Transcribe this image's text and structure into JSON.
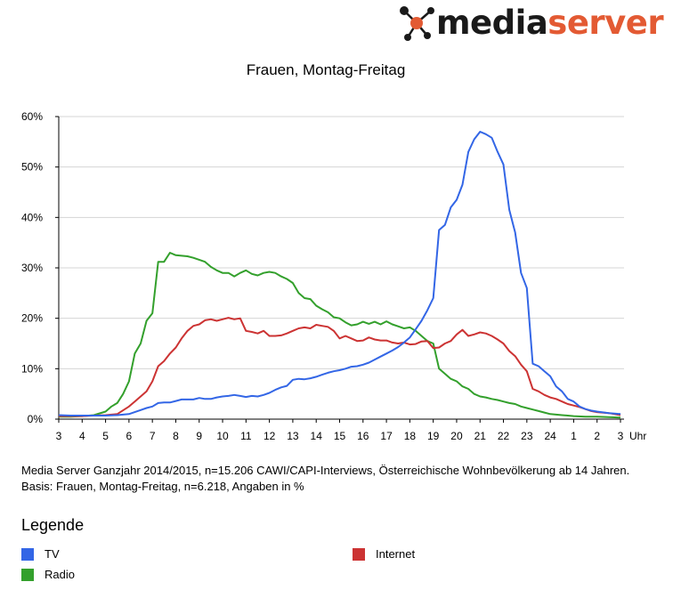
{
  "logo": {
    "part1": "media",
    "part2": "server"
  },
  "colors": {
    "tv": "#3366e6",
    "internet": "#cc3333",
    "radio": "#33a02c",
    "grid": "#d4d4d4",
    "logo_accent": "#e35a33"
  },
  "notes": {
    "line1": "Media Server Ganzjahr 2014/2015, n=15.206 CAWI/CAPI-Interviews, Österreichische Wohnbevölkerung ab 14 Jahren.",
    "line2": "Basis: Frauen, Montag-Freitag, n=6.218, Angaben in %"
  },
  "legend": {
    "title": "Legende"
  },
  "chart_data": {
    "type": "line",
    "title": "Frauen, Montag-Freitag",
    "xlabel": "Uhr",
    "ylabel": "",
    "ylim": [
      0,
      60
    ],
    "yticks": [
      "0%",
      "10%",
      "20%",
      "30%",
      "40%",
      "50%",
      "60%"
    ],
    "xlim": [
      3,
      27
    ],
    "x_tick_labels": [
      "3",
      "4",
      "5",
      "6",
      "7",
      "8",
      "9",
      "10",
      "11",
      "12",
      "13",
      "14",
      "15",
      "16",
      "17",
      "18",
      "19",
      "20",
      "21",
      "22",
      "23",
      "24",
      "1",
      "2",
      "3"
    ],
    "grid": true,
    "legend_position": "bottom",
    "series": [
      {
        "name": "TV",
        "color": "#3366e6",
        "x": [
          3,
          3.5,
          4,
          4.5,
          5,
          5.5,
          6,
          6.25,
          6.5,
          6.75,
          7,
          7.25,
          7.5,
          7.75,
          8,
          8.25,
          8.5,
          8.75,
          9,
          9.25,
          9.5,
          9.75,
          10,
          10.25,
          10.5,
          10.75,
          11,
          11.25,
          11.5,
          11.75,
          12,
          12.25,
          12.5,
          12.75,
          13,
          13.25,
          13.5,
          13.75,
          14,
          14.25,
          14.5,
          14.75,
          15,
          15.25,
          15.5,
          15.75,
          16,
          16.25,
          16.5,
          16.75,
          17,
          17.25,
          17.5,
          17.75,
          18,
          18.25,
          18.5,
          18.75,
          19,
          19.25,
          19.5,
          19.75,
          20,
          20.25,
          20.5,
          20.75,
          21,
          21.25,
          21.5,
          21.75,
          22,
          22.25,
          22.5,
          22.75,
          23,
          23.25,
          23.5,
          23.75,
          24,
          24.25,
          24.5,
          24.75,
          25,
          25.25,
          25.5,
          25.75,
          26,
          26.5,
          27
        ],
        "values": [
          0.8,
          0.7,
          0.7,
          0.7,
          0.7,
          0.8,
          1.0,
          1.4,
          1.8,
          2.2,
          2.5,
          3.2,
          3.3,
          3.3,
          3.6,
          3.9,
          3.9,
          3.9,
          4.2,
          4.0,
          4.0,
          4.3,
          4.5,
          4.6,
          4.8,
          4.6,
          4.4,
          4.6,
          4.5,
          4.8,
          5.2,
          5.8,
          6.3,
          6.6,
          7.8,
          8.0,
          7.9,
          8.1,
          8.4,
          8.8,
          9.2,
          9.5,
          9.7,
          10.0,
          10.4,
          10.5,
          10.8,
          11.2,
          11.8,
          12.4,
          13.0,
          13.6,
          14.3,
          15.2,
          16.2,
          17.8,
          19.5,
          21.6,
          24.0,
          37.5,
          38.5,
          42.0,
          43.5,
          46.5,
          53.0,
          55.5,
          57.0,
          56.5,
          55.8,
          53.0,
          50.5,
          41.5,
          37.0,
          29.0,
          26.0,
          11.0,
          10.5,
          9.5,
          8.5,
          6.5,
          5.5,
          4.0,
          3.5,
          2.5,
          2.0,
          1.7,
          1.5,
          1.2,
          1.0
        ]
      },
      {
        "name": "Internet",
        "color": "#cc3333",
        "x": [
          3,
          3.5,
          4,
          4.5,
          5,
          5.5,
          6,
          6.25,
          6.5,
          6.75,
          7,
          7.25,
          7.5,
          7.75,
          8,
          8.25,
          8.5,
          8.75,
          9,
          9.25,
          9.5,
          9.75,
          10,
          10.25,
          10.5,
          10.75,
          11,
          11.25,
          11.5,
          11.75,
          12,
          12.25,
          12.5,
          12.75,
          13,
          13.25,
          13.5,
          13.75,
          14,
          14.25,
          14.5,
          14.75,
          15,
          15.25,
          15.5,
          15.75,
          16,
          16.25,
          16.5,
          16.75,
          17,
          17.25,
          17.5,
          17.75,
          18,
          18.25,
          18.5,
          18.75,
          19,
          19.25,
          19.5,
          19.75,
          20,
          20.25,
          20.5,
          20.75,
          21,
          21.25,
          21.5,
          21.75,
          22,
          22.25,
          22.5,
          22.75,
          23,
          23.25,
          23.5,
          23.75,
          24,
          24.25,
          24.5,
          24.75,
          25,
          25.25,
          25.5,
          25.75,
          26,
          26.5,
          27
        ],
        "values": [
          0.6,
          0.6,
          0.6,
          0.7,
          0.8,
          1.0,
          2.5,
          3.5,
          4.5,
          5.5,
          7.5,
          10.5,
          11.5,
          13.0,
          14.2,
          16.0,
          17.5,
          18.5,
          18.8,
          19.6,
          19.8,
          19.5,
          19.8,
          20.1,
          19.8,
          20.0,
          17.5,
          17.3,
          17.0,
          17.5,
          16.5,
          16.5,
          16.6,
          17.0,
          17.5,
          18.0,
          18.2,
          18.0,
          18.7,
          18.5,
          18.3,
          17.5,
          16.0,
          16.5,
          16.0,
          15.5,
          15.6,
          16.2,
          15.8,
          15.6,
          15.6,
          15.2,
          15.0,
          15.2,
          14.8,
          14.9,
          15.4,
          15.5,
          14.1,
          14.2,
          15.0,
          15.5,
          16.8,
          17.7,
          16.5,
          16.8,
          17.2,
          17.0,
          16.5,
          15.8,
          15.0,
          13.5,
          12.5,
          10.8,
          9.5,
          6.0,
          5.5,
          4.8,
          4.3,
          4.0,
          3.5,
          3.0,
          2.7,
          2.4,
          2.0,
          1.6,
          1.4,
          1.2,
          0.8
        ]
      },
      {
        "name": "Radio",
        "color": "#33a02c",
        "x": [
          3,
          3.5,
          4,
          4.5,
          5,
          5.25,
          5.5,
          5.75,
          6,
          6.25,
          6.5,
          6.75,
          7,
          7.25,
          7.5,
          7.75,
          8,
          8.25,
          8.5,
          8.75,
          9,
          9.25,
          9.5,
          9.75,
          10,
          10.25,
          10.5,
          10.75,
          11,
          11.25,
          11.5,
          11.75,
          12,
          12.25,
          12.5,
          12.75,
          13,
          13.25,
          13.5,
          13.75,
          14,
          14.25,
          14.5,
          14.75,
          15,
          15.25,
          15.5,
          15.75,
          16,
          16.25,
          16.5,
          16.75,
          17,
          17.25,
          17.5,
          17.75,
          18,
          18.25,
          18.5,
          18.75,
          19,
          19.25,
          19.5,
          19.75,
          20,
          20.25,
          20.5,
          20.75,
          21,
          21.25,
          21.5,
          21.75,
          22,
          22.25,
          22.5,
          22.75,
          23,
          23.25,
          23.5,
          23.75,
          24,
          24.25,
          24.5,
          24.75,
          25,
          25.5,
          26,
          26.5,
          27
        ],
        "values": [
          0.5,
          0.5,
          0.6,
          0.8,
          1.5,
          2.5,
          3.2,
          5.0,
          7.5,
          13.0,
          15.0,
          19.5,
          21.0,
          31.2,
          31.2,
          33.0,
          32.5,
          32.4,
          32.3,
          32.0,
          31.6,
          31.2,
          30.2,
          29.5,
          29.0,
          29.0,
          28.3,
          29.0,
          29.5,
          28.8,
          28.5,
          29.0,
          29.2,
          29.0,
          28.3,
          27.8,
          27.0,
          25.0,
          24.0,
          23.8,
          22.5,
          21.8,
          21.2,
          20.2,
          20.0,
          19.2,
          18.6,
          18.8,
          19.3,
          18.9,
          19.3,
          18.8,
          19.4,
          18.8,
          18.4,
          18.0,
          18.2,
          17.5,
          16.5,
          15.5,
          15.0,
          10.0,
          9.0,
          8.0,
          7.5,
          6.5,
          6.0,
          5.0,
          4.5,
          4.3,
          4.0,
          3.8,
          3.5,
          3.2,
          3.0,
          2.5,
          2.2,
          1.9,
          1.6,
          1.3,
          1.0,
          0.9,
          0.8,
          0.7,
          0.6,
          0.5,
          0.5,
          0.4,
          0.3
        ]
      }
    ]
  }
}
